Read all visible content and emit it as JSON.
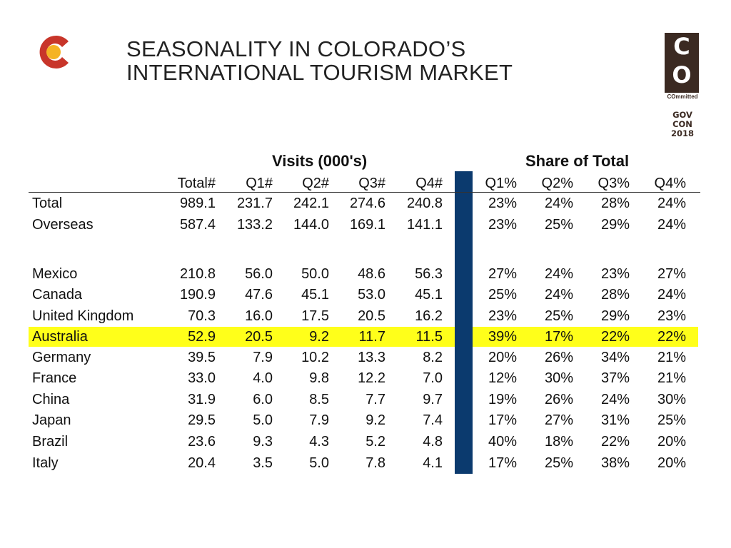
{
  "header": {
    "title_line1": "SEASONALITY IN COLORADO’S",
    "title_line2": "INTERNATIONAL TOURISM MARKET"
  },
  "badge": {
    "co_top": "C",
    "co_bottom": "O",
    "committed": "COmmitted",
    "gov": "GOV",
    "con": "CON",
    "year": "2018"
  },
  "colors": {
    "logo_red": "#c8352a",
    "logo_yellow": "#f5b324",
    "badge_brown": "#3b2a22",
    "divider_blue": "#0b3a6e",
    "highlight_yellow": "#ffff1a"
  },
  "table": {
    "visits_header": "Visits (000's)",
    "share_header": "Share of Total",
    "columns": [
      "Total#",
      "Q1#",
      "Q2#",
      "Q3#",
      "Q4#",
      "Q1%",
      "Q2%",
      "Q3%",
      "Q4%"
    ],
    "rows": [
      {
        "label": "Total",
        "values": [
          "989.1",
          "231.7",
          "242.1",
          "274.6",
          "240.8",
          "23%",
          "24%",
          "28%",
          "24%"
        ],
        "highlight": false
      },
      {
        "label": "Overseas",
        "values": [
          "587.4",
          "133.2",
          "144.0",
          "169.1",
          "141.1",
          "23%",
          "25%",
          "29%",
          "24%"
        ],
        "highlight": false
      },
      {
        "label": "Mexico",
        "values": [
          "210.8",
          "56.0",
          "50.0",
          "48.6",
          "56.3",
          "27%",
          "24%",
          "23%",
          "27%"
        ],
        "highlight": false
      },
      {
        "label": "Canada",
        "values": [
          "190.9",
          "47.6",
          "45.1",
          "53.0",
          "45.1",
          "25%",
          "24%",
          "28%",
          "24%"
        ],
        "highlight": false
      },
      {
        "label": "United Kingdom",
        "values": [
          "70.3",
          "16.0",
          "17.5",
          "20.5",
          "16.2",
          "23%",
          "25%",
          "29%",
          "23%"
        ],
        "highlight": false
      },
      {
        "label": "Australia",
        "values": [
          "52.9",
          "20.5",
          "9.2",
          "11.7",
          "11.5",
          "39%",
          "17%",
          "22%",
          "22%"
        ],
        "highlight": true
      },
      {
        "label": "Germany",
        "values": [
          "39.5",
          "7.9",
          "10.2",
          "13.3",
          "8.2",
          "20%",
          "26%",
          "34%",
          "21%"
        ],
        "highlight": false
      },
      {
        "label": "France",
        "values": [
          "33.0",
          "4.0",
          "9.8",
          "12.2",
          "7.0",
          "12%",
          "30%",
          "37%",
          "21%"
        ],
        "highlight": false
      },
      {
        "label": "China",
        "values": [
          "31.9",
          "6.0",
          "8.5",
          "7.7",
          "9.7",
          "19%",
          "26%",
          "24%",
          "30%"
        ],
        "highlight": false
      },
      {
        "label": "Japan",
        "values": [
          "29.5",
          "5.0",
          "7.9",
          "9.2",
          "7.4",
          "17%",
          "27%",
          "31%",
          "25%"
        ],
        "highlight": false
      },
      {
        "label": "Brazil",
        "values": [
          "23.6",
          "9.3",
          "4.3",
          "5.2",
          "4.8",
          "40%",
          "18%",
          "22%",
          "20%"
        ],
        "highlight": false
      },
      {
        "label": "Italy",
        "values": [
          "20.4",
          "3.5",
          "5.0",
          "7.8",
          "4.1",
          "17%",
          "25%",
          "38%",
          "20%"
        ],
        "highlight": false
      }
    ]
  }
}
